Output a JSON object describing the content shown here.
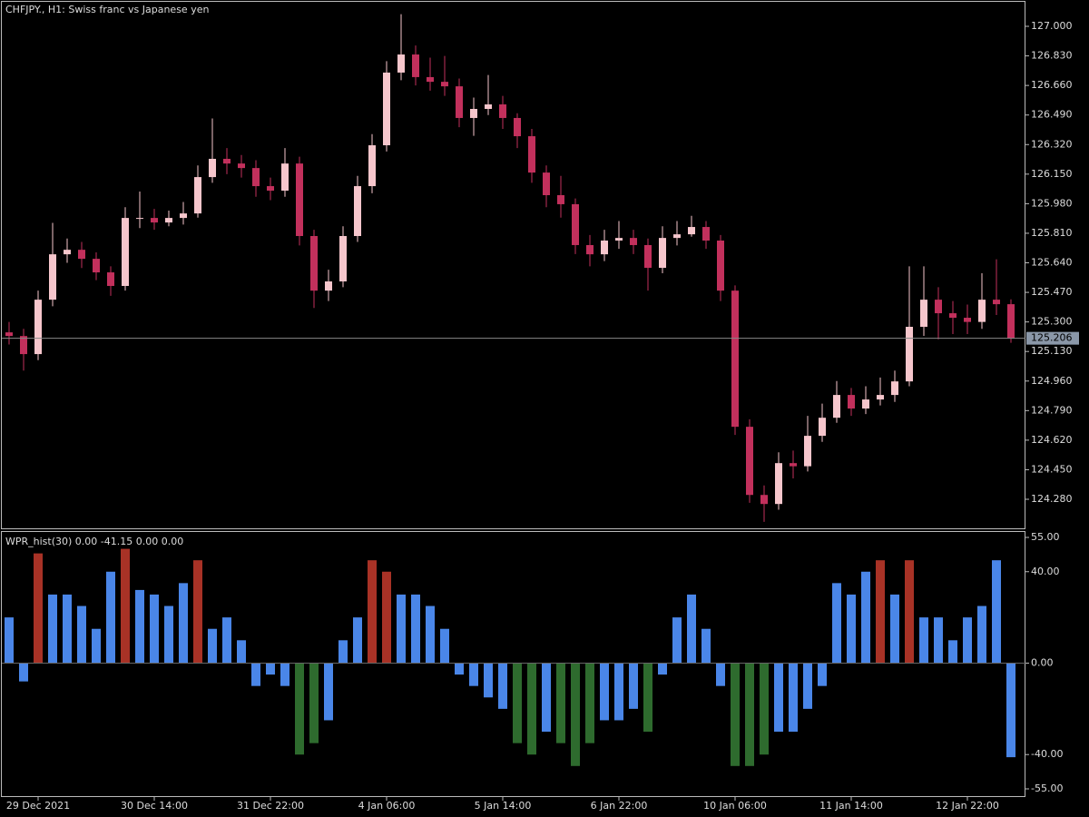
{
  "chart_data": [
    {
      "type": "candlestick",
      "title": "CHFJPY., H1:  Swiss franc vs Japanese yen",
      "up_color": "#f6c6cc",
      "down_color": "#c2305c",
      "categories": [
        null,
        null,
        "29 Dec 2021",
        null,
        null,
        null,
        null,
        null,
        null,
        null,
        "30 Dec 14:00",
        null,
        null,
        null,
        null,
        null,
        null,
        null,
        "31 Dec 22:00",
        null,
        null,
        null,
        null,
        null,
        null,
        null,
        "4 Jan 06:00",
        null,
        null,
        null,
        null,
        null,
        null,
        null,
        "5 Jan 14:00",
        null,
        null,
        null,
        null,
        null,
        null,
        null,
        "6 Jan 22:00",
        null,
        null,
        null,
        null,
        null,
        null,
        null,
        "10 Jan 06:00",
        null,
        null,
        null,
        null,
        null,
        null,
        null,
        "11 Jan 14:00",
        null,
        null,
        null,
        null,
        null,
        null,
        null,
        "12 Jan 22:00",
        null,
        null,
        null
      ],
      "open": [
        125.24,
        125.219,
        125.115,
        125.428,
        125.689,
        125.715,
        125.663,
        125.585,
        125.507,
        125.898,
        125.898,
        125.872,
        125.898,
        125.924,
        126.133,
        126.238,
        126.211,
        126.185,
        126.081,
        126.055,
        126.211,
        125.794,
        125.48,
        125.533,
        125.794,
        126.081,
        126.316,
        126.734,
        126.838,
        126.708,
        126.681,
        126.655,
        126.473,
        126.525,
        126.551,
        126.473,
        126.368,
        126.159,
        126.029,
        125.977,
        125.742,
        125.689,
        125.768,
        125.783,
        125.742,
        125.611,
        125.783,
        125.804,
        125.846,
        125.768,
        125.48,
        124.697,
        124.305,
        124.253,
        124.488,
        124.47,
        124.645,
        124.749,
        124.88,
        124.802,
        124.854,
        124.88,
        124.958,
        125.272,
        125.428,
        125.35,
        125.324,
        125.3,
        125.428,
        125.402
      ],
      "high": [
        125.3,
        125.26,
        125.48,
        125.87,
        125.78,
        125.76,
        125.7,
        125.62,
        125.96,
        126.05,
        125.95,
        125.94,
        125.99,
        126.2,
        126.47,
        126.3,
        126.26,
        126.23,
        126.13,
        126.3,
        126.25,
        125.83,
        125.6,
        125.85,
        126.14,
        126.38,
        126.8,
        127.07,
        126.89,
        126.82,
        126.83,
        126.7,
        126.59,
        126.72,
        126.6,
        126.5,
        126.41,
        126.2,
        126.14,
        126.01,
        125.8,
        125.83,
        125.88,
        125.83,
        125.78,
        125.85,
        125.88,
        125.91,
        125.88,
        125.8,
        125.51,
        124.74,
        124.36,
        124.55,
        124.56,
        124.76,
        124.83,
        124.96,
        124.92,
        124.93,
        124.98,
        125.02,
        125.62,
        125.62,
        125.5,
        125.42,
        125.4,
        125.58,
        125.66,
        125.43
      ],
      "low": [
        125.17,
        125.02,
        125.08,
        125.39,
        125.64,
        125.61,
        125.54,
        125.45,
        125.48,
        125.84,
        125.83,
        125.85,
        125.86,
        125.9,
        126.1,
        126.15,
        126.13,
        126.02,
        126.0,
        126.02,
        125.74,
        125.38,
        125.42,
        125.5,
        125.76,
        126.04,
        126.28,
        126.69,
        126.66,
        126.63,
        126.6,
        126.42,
        126.37,
        126.49,
        126.41,
        126.3,
        126.1,
        125.96,
        125.9,
        125.69,
        125.62,
        125.65,
        125.72,
        125.69,
        125.48,
        125.58,
        125.74,
        125.79,
        125.72,
        125.42,
        124.65,
        124.26,
        124.15,
        124.22,
        124.4,
        124.44,
        124.61,
        124.72,
        124.76,
        124.77,
        124.82,
        124.84,
        124.93,
        125.22,
        125.2,
        125.23,
        125.23,
        125.26,
        125.34,
        125.18
      ],
      "close": [
        125.219,
        125.115,
        125.428,
        125.689,
        125.715,
        125.663,
        125.585,
        125.507,
        125.898,
        125.898,
        125.872,
        125.898,
        125.924,
        126.133,
        126.238,
        126.211,
        126.185,
        126.081,
        126.055,
        126.211,
        125.794,
        125.48,
        125.533,
        125.794,
        126.081,
        126.316,
        126.734,
        126.838,
        126.708,
        126.681,
        126.655,
        126.473,
        126.525,
        126.551,
        126.473,
        126.368,
        126.159,
        126.029,
        125.977,
        125.742,
        125.689,
        125.768,
        125.783,
        125.742,
        125.611,
        125.783,
        125.804,
        125.846,
        125.768,
        125.48,
        124.697,
        124.305,
        124.253,
        124.488,
        124.47,
        124.645,
        124.749,
        124.88,
        124.802,
        124.854,
        124.88,
        124.958,
        125.272,
        125.428,
        125.35,
        125.324,
        125.3,
        125.428,
        125.402,
        125.206
      ],
      "last_price": 125.206,
      "ylim": [
        124.113,
        127.141
      ],
      "yticks": [
        {
          "value": 127.0,
          "label": "127.000"
        },
        {
          "value": 126.83,
          "label": "126.830"
        },
        {
          "value": 126.66,
          "label": "126.660"
        },
        {
          "value": 126.49,
          "label": "126.490"
        },
        {
          "value": 126.32,
          "label": "126.320"
        },
        {
          "value": 126.15,
          "label": "126.150"
        },
        {
          "value": 125.98,
          "label": "125.980"
        },
        {
          "value": 125.81,
          "label": "125.810"
        },
        {
          "value": 125.64,
          "label": "125.640"
        },
        {
          "value": 125.47,
          "label": "125.470"
        },
        {
          "value": 125.3,
          "label": "125.300"
        },
        {
          "value": 125.13,
          "label": "125.130"
        },
        {
          "value": 124.96,
          "label": "124.960"
        },
        {
          "value": 124.79,
          "label": "124.790"
        },
        {
          "value": 124.62,
          "label": "124.620"
        },
        {
          "value": 124.45,
          "label": "124.450"
        },
        {
          "value": 124.28,
          "label": "124.280"
        }
      ]
    },
    {
      "type": "bar",
      "title": "WPR_hist(30) 0.00 -41.15 0.00 0.00",
      "values": [
        20,
        -8,
        48,
        30,
        30,
        25,
        15,
        40,
        50,
        32,
        30,
        25,
        35,
        45,
        15,
        20,
        10,
        -10,
        -5,
        -10,
        -40,
        -35,
        -25,
        10,
        20,
        45,
        40,
        30,
        30,
        25,
        15,
        -5,
        -10,
        -15,
        -20,
        -35,
        -40,
        -30,
        -35,
        -45,
        -35,
        -25,
        -25,
        -20,
        -30,
        -5,
        20,
        30,
        15,
        -10,
        -45,
        -45,
        -40,
        -30,
        -30,
        -20,
        -10,
        35,
        30,
        40,
        45,
        30,
        45,
        20,
        20,
        10,
        20,
        25,
        45,
        -41.15
      ],
      "colors": [
        "#4a86e8",
        "#4a86e8",
        "#a83226",
        "#4a86e8",
        "#4a86e8",
        "#4a86e8",
        "#4a86e8",
        "#4a86e8",
        "#a83226",
        "#4a86e8",
        "#4a86e8",
        "#4a86e8",
        "#4a86e8",
        "#a83226",
        "#4a86e8",
        "#4a86e8",
        "#4a86e8",
        "#4a86e8",
        "#4a86e8",
        "#4a86e8",
        "#2e6b2e",
        "#2e6b2e",
        "#4a86e8",
        "#4a86e8",
        "#4a86e8",
        "#a83226",
        "#a83226",
        "#4a86e8",
        "#4a86e8",
        "#4a86e8",
        "#4a86e8",
        "#4a86e8",
        "#4a86e8",
        "#4a86e8",
        "#4a86e8",
        "#2e6b2e",
        "#2e6b2e",
        "#4a86e8",
        "#2e6b2e",
        "#2e6b2e",
        "#2e6b2e",
        "#4a86e8",
        "#4a86e8",
        "#4a86e8",
        "#2e6b2e",
        "#4a86e8",
        "#4a86e8",
        "#4a86e8",
        "#4a86e8",
        "#4a86e8",
        "#2e6b2e",
        "#2e6b2e",
        "#2e6b2e",
        "#4a86e8",
        "#4a86e8",
        "#4a86e8",
        "#4a86e8",
        "#4a86e8",
        "#4a86e8",
        "#4a86e8",
        "#a83226",
        "#4a86e8",
        "#a83226",
        "#4a86e8",
        "#4a86e8",
        "#4a86e8",
        "#4a86e8",
        "#4a86e8",
        "#4a86e8",
        "#4a86e8"
      ],
      "ylim": [
        -58.18,
        57.38
      ],
      "yticks": [
        {
          "value": 55,
          "label": "55.00"
        },
        {
          "value": 40,
          "label": "40.00"
        },
        {
          "value": 0,
          "label": "0.00"
        },
        {
          "value": -40,
          "label": "-40.00"
        },
        {
          "value": -55,
          "label": "-55.00"
        }
      ]
    }
  ]
}
